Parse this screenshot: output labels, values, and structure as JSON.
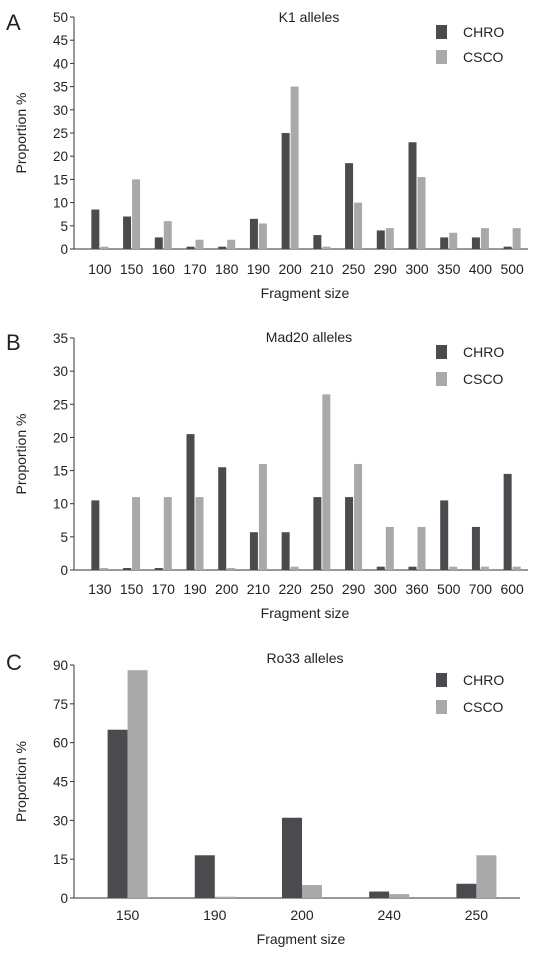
{
  "colors": {
    "chro": "#4a4a4f",
    "csco": "#a9a9a9",
    "axis": "#333333"
  },
  "chart_data": [
    {
      "panel": "A",
      "type": "bar",
      "title": "K1 alleles",
      "xlabel": "Fragment size",
      "ylabel": "Proportion %",
      "ylim": [
        0,
        50
      ],
      "yticks": [
        0,
        5,
        10,
        15,
        20,
        25,
        30,
        35,
        40,
        45,
        50
      ],
      "legend_position": "top-right",
      "categories": [
        "100",
        "150",
        "160",
        "170",
        "180",
        "190",
        "200",
        "210",
        "250",
        "290",
        "300",
        "350",
        "400",
        "500"
      ],
      "series": [
        {
          "name": "CHRO",
          "values": [
            8.5,
            7,
            2.5,
            0.5,
            0.5,
            6.5,
            25,
            3,
            18.5,
            4,
            23,
            2.5,
            2.5,
            0.5
          ]
        },
        {
          "name": "CSCO",
          "values": [
            0.5,
            15,
            6,
            2,
            2,
            5.5,
            35,
            0.5,
            10,
            4.5,
            15.5,
            3.5,
            4.5,
            4.5
          ]
        }
      ]
    },
    {
      "panel": "B",
      "type": "bar",
      "title": "Mad20 alleles",
      "xlabel": "Fragment size",
      "ylabel": "Proportion %",
      "ylim": [
        0,
        35
      ],
      "yticks": [
        0,
        5,
        10,
        15,
        20,
        25,
        30,
        35
      ],
      "legend_position": "top-right",
      "categories": [
        "130",
        "150",
        "170",
        "190",
        "200",
        "210",
        "220",
        "250",
        "290",
        "300",
        "360",
        "500",
        "700",
        "600"
      ],
      "series": [
        {
          "name": "CHRO",
          "values": [
            10.5,
            0.3,
            0.3,
            20.5,
            15.5,
            5.7,
            5.7,
            11,
            11,
            0.5,
            0.5,
            10.5,
            6.5,
            14.5
          ]
        },
        {
          "name": "CSCO",
          "values": [
            0.3,
            11,
            11,
            11,
            0.3,
            16,
            0.5,
            26.5,
            16,
            6.5,
            6.5,
            0.5,
            0.5,
            0.5
          ]
        }
      ]
    },
    {
      "panel": "C",
      "type": "bar",
      "title": "Ro33 alleles",
      "xlabel": "Fragment size",
      "ylabel": "Proportion %",
      "ylim": [
        0,
        90
      ],
      "yticks": [
        0,
        15,
        30,
        45,
        60,
        75,
        90
      ],
      "legend_position": "top-right",
      "categories": [
        "150",
        "190",
        "200",
        "240",
        "250"
      ],
      "series": [
        {
          "name": "CHRO",
          "values": [
            65,
            16.5,
            31,
            2.5,
            5.5
          ]
        },
        {
          "name": "CSCO",
          "values": [
            88,
            0.5,
            5,
            1.5,
            16.5
          ]
        }
      ]
    }
  ]
}
